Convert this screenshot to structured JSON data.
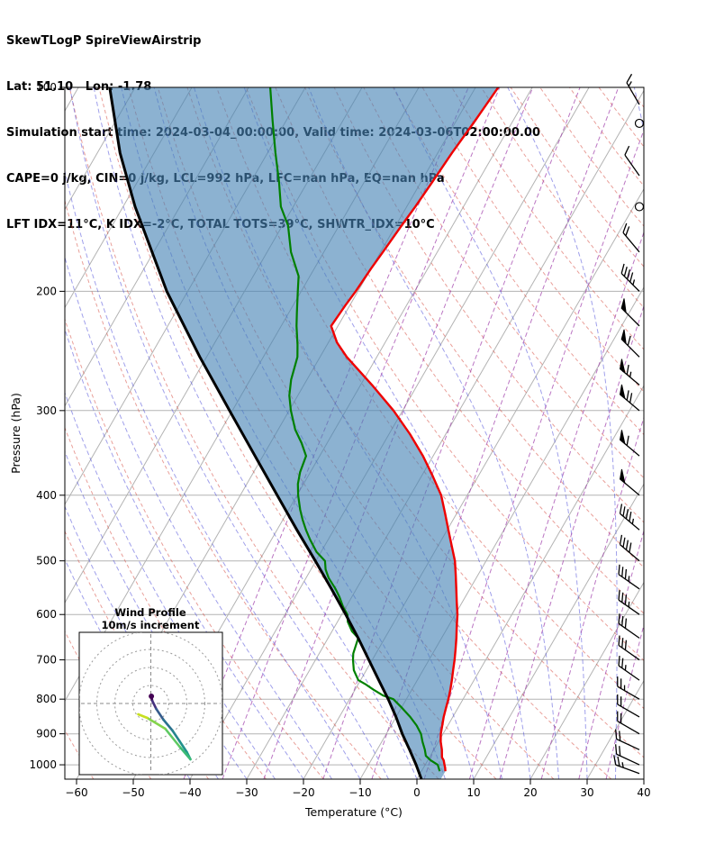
{
  "header": {
    "title": "SkewTLogP SpireViewAirstrip",
    "location": "Lat: 51.10   Lon: -1.78",
    "sim_time": "Simulation start time: 2024-03-04_00:00:00, Valid time: 2024-03-06T02:00:00.00",
    "indices1": "CAPE=0 j/kg, CIN=0 j/kg, LCL=992 hPa, LFC=nan hPa, EQ=nan hPa",
    "indices2": "LFT IDX=11°C, K IDX=-2°C, TOTAL TOTS=39°C, SHWTR_IDX=10°C"
  },
  "axes": {
    "x_label": "Temperature (°C)",
    "y_label": "Pressure (hPa)",
    "x_ticks": [
      -60,
      -50,
      -40,
      -30,
      -20,
      -10,
      0,
      10,
      20,
      30,
      40
    ],
    "y_ticks": [
      100,
      200,
      300,
      400,
      500,
      600,
      700,
      800,
      900,
      1000
    ],
    "p_top": 100,
    "p_bottom": 1050
  },
  "inset": {
    "title_line1": "Wind Profile",
    "title_line2": "10m/s increment",
    "ring_increment_ms": 10,
    "rings": [
      10,
      20,
      30,
      40
    ]
  },
  "colors": {
    "grid": "#b3b3b3",
    "dry_adiabat": "rgba(215,80,70,0.55)",
    "moist_adiabat": "rgba(65,65,215,0.5)",
    "mixing_ratio": "rgba(158,60,170,0.7)",
    "barb": "#000000"
  },
  "chart_data": {
    "type": "skewt-logp",
    "title": "SkewTLogP SpireViewAirstrip",
    "pressure_range_hPa": [
      100,
      1050
    ],
    "temperature_range_c": [
      -62,
      40
    ],
    "series": [
      {
        "name": "temperature",
        "label": "Temperature profile",
        "color": "#ee0000",
        "points": [
          [
            1022,
            4.2
          ],
          [
            1010,
            3.8
          ],
          [
            1000,
            3.4
          ],
          [
            985,
            2.8
          ],
          [
            975,
            2.2
          ],
          [
            950,
            1.4
          ],
          [
            925,
            0.4
          ],
          [
            900,
            -0.4
          ],
          [
            875,
            -1.0
          ],
          [
            850,
            -1.6
          ],
          [
            825,
            -2.1
          ],
          [
            800,
            -2.6
          ],
          [
            775,
            -3.2
          ],
          [
            750,
            -3.9
          ],
          [
            725,
            -4.7
          ],
          [
            700,
            -5.5
          ],
          [
            675,
            -6.4
          ],
          [
            650,
            -7.4
          ],
          [
            625,
            -8.5
          ],
          [
            600,
            -9.6
          ],
          [
            575,
            -11.0
          ],
          [
            550,
            -12.4
          ],
          [
            525,
            -13.9
          ],
          [
            500,
            -15.5
          ],
          [
            475,
            -17.6
          ],
          [
            450,
            -19.8
          ],
          [
            425,
            -22.1
          ],
          [
            400,
            -24.6
          ],
          [
            375,
            -28.0
          ],
          [
            350,
            -31.8
          ],
          [
            325,
            -36.3
          ],
          [
            300,
            -41.6
          ],
          [
            275,
            -48.0
          ],
          [
            250,
            -55.3
          ],
          [
            238,
            -58.5
          ],
          [
            225,
            -61.2
          ],
          [
            210,
            -60.8
          ],
          [
            200,
            -60.4
          ],
          [
            185,
            -60.0
          ],
          [
            175,
            -59.6
          ],
          [
            160,
            -59.0
          ],
          [
            150,
            -58.5
          ],
          [
            138,
            -58.0
          ],
          [
            125,
            -57.5
          ],
          [
            112,
            -56.7
          ],
          [
            100,
            -56.0
          ]
        ]
      },
      {
        "name": "dewpoint",
        "label": "Dewpoint profile",
        "color": "#008000",
        "points": [
          [
            1022,
            3.2
          ],
          [
            1000,
            2.2
          ],
          [
            985,
            0.5
          ],
          [
            970,
            -0.8
          ],
          [
            950,
            -1.6
          ],
          [
            925,
            -2.8
          ],
          [
            900,
            -3.9
          ],
          [
            875,
            -5.5
          ],
          [
            850,
            -7.5
          ],
          [
            825,
            -9.8
          ],
          [
            800,
            -12.3
          ],
          [
            790,
            -14.5
          ],
          [
            775,
            -16.7
          ],
          [
            760,
            -18.8
          ],
          [
            750,
            -20.4
          ],
          [
            725,
            -22.2
          ],
          [
            700,
            -23.4
          ],
          [
            685,
            -24.0
          ],
          [
            665,
            -24.4
          ],
          [
            650,
            -24.7
          ],
          [
            635,
            -26.5
          ],
          [
            615,
            -28.2
          ],
          [
            600,
            -29.0
          ],
          [
            585,
            -30.5
          ],
          [
            565,
            -32.2
          ],
          [
            550,
            -33.7
          ],
          [
            530,
            -36.0
          ],
          [
            515,
            -37.4
          ],
          [
            500,
            -38.4
          ],
          [
            485,
            -40.8
          ],
          [
            465,
            -43.2
          ],
          [
            450,
            -44.9
          ],
          [
            435,
            -46.5
          ],
          [
            420,
            -48.0
          ],
          [
            400,
            -49.8
          ],
          [
            385,
            -51.0
          ],
          [
            370,
            -51.8
          ],
          [
            350,
            -52.4
          ],
          [
            335,
            -54.5
          ],
          [
            320,
            -57.0
          ],
          [
            300,
            -59.7
          ],
          [
            285,
            -61.5
          ],
          [
            270,
            -62.8
          ],
          [
            250,
            -64.0
          ],
          [
            240,
            -65.2
          ],
          [
            225,
            -67.3
          ],
          [
            215,
            -68.6
          ],
          [
            200,
            -70.6
          ],
          [
            190,
            -72.0
          ],
          [
            175,
            -75.8
          ],
          [
            160,
            -79.0
          ],
          [
            150,
            -82.2
          ],
          [
            138,
            -85.0
          ],
          [
            125,
            -88.6
          ],
          [
            112,
            -92.4
          ],
          [
            100,
            -96.2
          ]
        ]
      },
      {
        "name": "parcel_reference",
        "label": "Reference moist-adiabat curve",
        "color": "#000000",
        "points": [
          [
            1050,
            0.8
          ],
          [
            1000,
            -1.6
          ],
          [
            950,
            -4.3
          ],
          [
            900,
            -7.2
          ],
          [
            850,
            -10.0
          ],
          [
            800,
            -13.2
          ],
          [
            750,
            -16.8
          ],
          [
            700,
            -20.6
          ],
          [
            650,
            -24.7
          ],
          [
            600,
            -29.3
          ],
          [
            550,
            -34.4
          ],
          [
            500,
            -40.1
          ],
          [
            450,
            -46.5
          ],
          [
            400,
            -53.5
          ],
          [
            350,
            -61.4
          ],
          [
            300,
            -70.5
          ],
          [
            250,
            -81.2
          ],
          [
            200,
            -93.7
          ],
          [
            150,
            -107.9
          ],
          [
            125,
            -116.0
          ],
          [
            100,
            -124.5
          ]
        ]
      }
    ],
    "shading": {
      "between": [
        "parcel_reference",
        "temperature"
      ],
      "color": "rgba(70,130,180,0.62)"
    },
    "wind_barbs": [
      [
        1030,
        25,
        290
      ],
      [
        1000,
        20,
        295
      ],
      [
        950,
        20,
        295
      ],
      [
        900,
        20,
        300
      ],
      [
        850,
        20,
        300
      ],
      [
        800,
        25,
        300
      ],
      [
        750,
        25,
        305
      ],
      [
        700,
        30,
        305
      ],
      [
        650,
        30,
        305
      ],
      [
        600,
        35,
        305
      ],
      [
        550,
        35,
        305
      ],
      [
        500,
        40,
        310
      ],
      [
        450,
        45,
        310
      ],
      [
        400,
        50,
        310
      ],
      [
        350,
        60,
        310
      ],
      [
        300,
        70,
        310
      ],
      [
        275,
        65,
        310
      ],
      [
        250,
        60,
        315
      ],
      [
        225,
        50,
        315
      ],
      [
        200,
        45,
        315
      ],
      [
        175,
        20,
        320
      ],
      [
        150,
        0,
        0
      ],
      [
        135,
        10,
        325
      ],
      [
        113,
        0,
        0
      ],
      [
        106,
        15,
        330
      ]
    ],
    "hodograph": {
      "units": "m/s",
      "points": [
        {
          "u": 0.3,
          "v": 4,
          "color": "#440154"
        },
        {
          "u": 0.8,
          "v": 1.5,
          "color": "#46327e"
        },
        {
          "u": 3,
          "v": -3,
          "color": "#365c8d"
        },
        {
          "u": 7,
          "v": -9,
          "color": "#2c728e"
        },
        {
          "u": 12,
          "v": -15,
          "color": "#25858e"
        },
        {
          "u": 16,
          "v": -21,
          "color": "#21918c"
        },
        {
          "u": 20,
          "v": -27,
          "color": "#1fa187"
        },
        {
          "u": 22,
          "v": -31,
          "color": "#3bbb75"
        },
        {
          "u": 16,
          "v": -24,
          "color": "#5ec962"
        },
        {
          "u": 8,
          "v": -14,
          "color": "#84d44b"
        },
        {
          "u": -2,
          "v": -8,
          "color": "#c8e020"
        },
        {
          "u": -7,
          "v": -6,
          "color": "#fde725"
        }
      ]
    },
    "background": {
      "isotherms": {
        "min": -160,
        "max": 40,
        "step": 10
      },
      "dry_adiabats": {
        "min": -60,
        "max": 200,
        "step": 10
      },
      "moist_adiabats": {
        "min": -40,
        "max": 45,
        "step": 5
      },
      "mixing_ratio_gkg": [
        0.1,
        0.2,
        0.4,
        1,
        2,
        4,
        7,
        10,
        16,
        24,
        32
      ]
    }
  }
}
